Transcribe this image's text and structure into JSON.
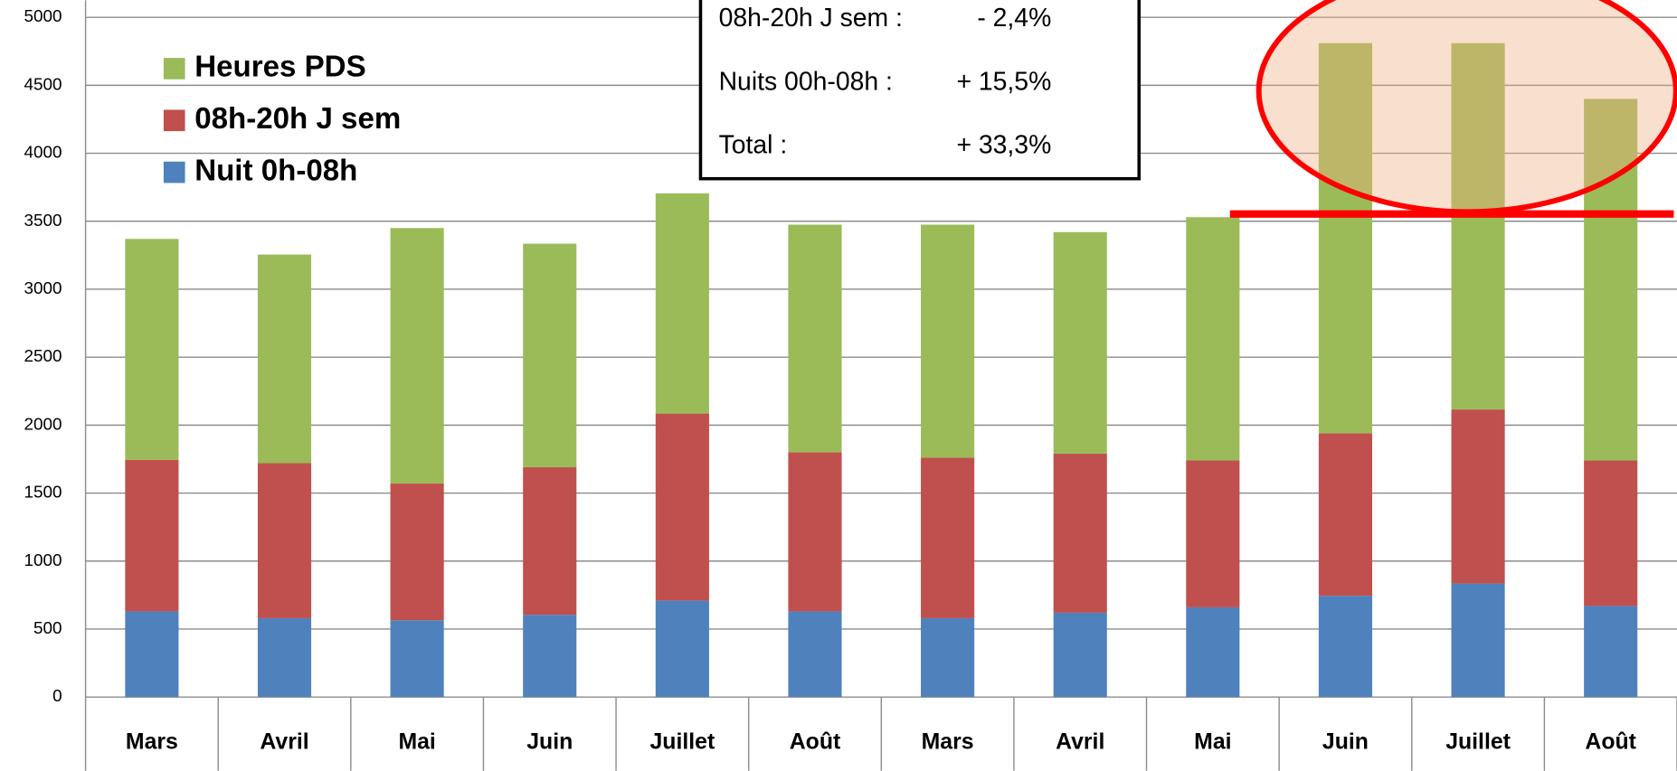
{
  "chart_data": {
    "type": "stacked_bar",
    "categories": [
      "Mars",
      "Avril",
      "Mai",
      "Juin",
      "Juillet",
      "Août",
      "Mars",
      "Avril",
      "Mai",
      "Juin",
      "Juillet",
      "Août"
    ],
    "series": [
      {
        "name": "Nuit 0h-08h",
        "color": "#4f81bd",
        "values": [
          630,
          580,
          565,
          605,
          710,
          630,
          580,
          620,
          660,
          745,
          835,
          670
        ]
      },
      {
        "name": "08h-20h J sem",
        "color": "#c0504d",
        "values": [
          1115,
          1140,
          1005,
          1085,
          1375,
          1170,
          1180,
          1170,
          1080,
          1195,
          1280,
          1070
        ]
      },
      {
        "name": "Heures PDS",
        "color": "#9bbb59",
        "values": [
          1625,
          1535,
          1880,
          1645,
          1620,
          1675,
          1715,
          1630,
          1790,
          2870,
          2695,
          2660
        ]
      }
    ],
    "ylim": [
      0,
      5000
    ],
    "yticks": [
      0,
      500,
      1000,
      1500,
      2000,
      2500,
      3000,
      3500,
      4000,
      4500,
      5000
    ],
    "grid": true,
    "legend": "upper left",
    "annotations": [
      {
        "label": "08h-20h J sem :",
        "value": "- 2,4%"
      },
      {
        "label": "Nuits 00h-08h :",
        "value": "+ 15,5%"
      },
      {
        "label": "Total :",
        "value": "+ 33,3%"
      }
    ]
  }
}
